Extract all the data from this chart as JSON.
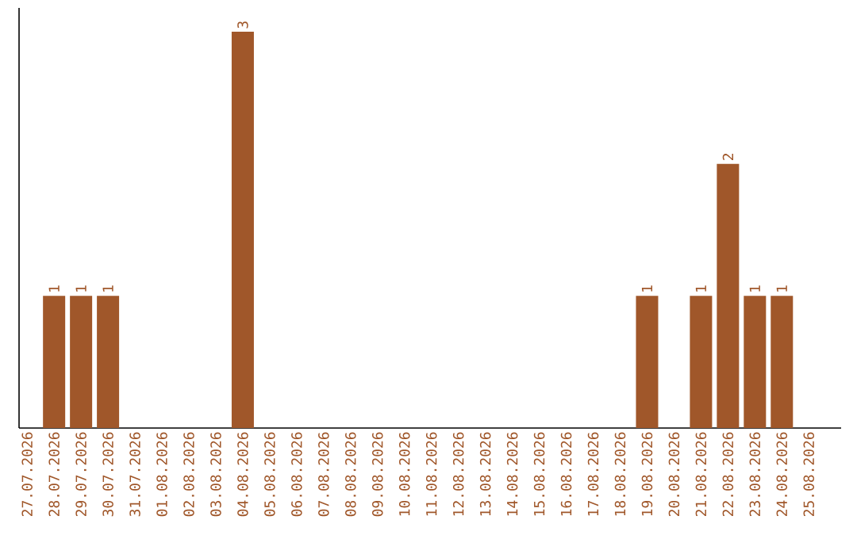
{
  "chart_data": {
    "type": "bar",
    "categories": [
      "27.07.2026",
      "28.07.2026",
      "29.07.2026",
      "30.07.2026",
      "31.07.2026",
      "01.08.2026",
      "02.08.2026",
      "03.08.2026",
      "04.08.2026",
      "05.08.2026",
      "06.08.2026",
      "07.08.2026",
      "08.08.2026",
      "09.08.2026",
      "10.08.2026",
      "11.08.2026",
      "12.08.2026",
      "13.08.2026",
      "14.08.2026",
      "15.08.2026",
      "16.08.2026",
      "17.08.2026",
      "18.08.2026",
      "19.08.2026",
      "20.08.2026",
      "21.08.2026",
      "22.08.2026",
      "23.08.2026",
      "24.08.2026",
      "25.08.2026"
    ],
    "values": [
      0,
      1,
      1,
      1,
      0,
      0,
      0,
      0,
      3,
      0,
      0,
      0,
      0,
      0,
      0,
      0,
      0,
      0,
      0,
      0,
      0,
      0,
      0,
      1,
      0,
      1,
      2,
      1,
      1,
      0
    ],
    "value_labels": [
      null,
      "1",
      "1",
      "1",
      null,
      null,
      null,
      null,
      "3",
      null,
      null,
      null,
      null,
      null,
      null,
      null,
      null,
      null,
      null,
      null,
      null,
      null,
      null,
      "1",
      null,
      "1",
      "2",
      "1",
      "1",
      null
    ],
    "color": "#a0572a",
    "tick_labels": "x"
  }
}
